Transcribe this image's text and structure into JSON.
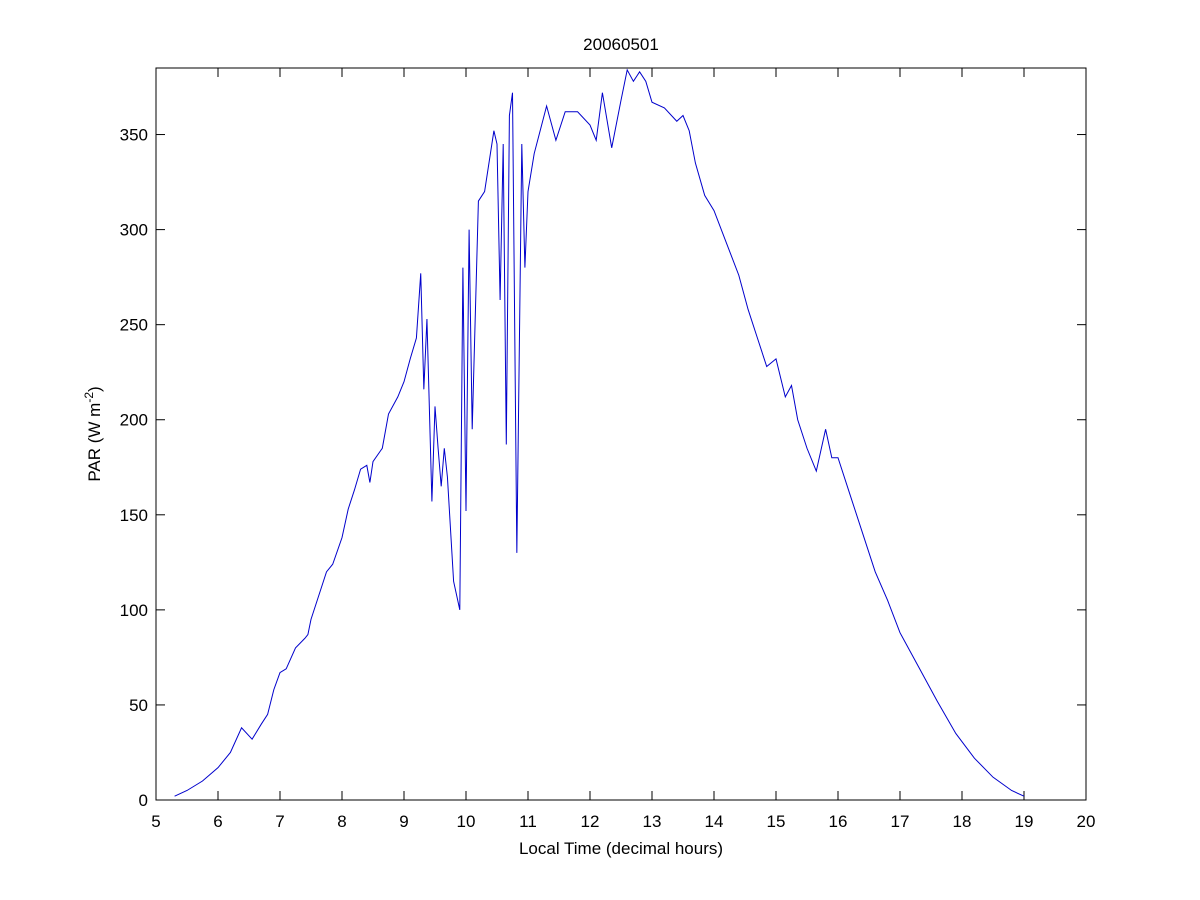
{
  "chart_data": {
    "type": "line",
    "title": "20060501",
    "xlabel": "Local Time (decimal hours)",
    "ylabel": {
      "text": "PAR (W m",
      "superscript": "-2",
      "suffix": ")"
    },
    "x": [
      5.3,
      5.5,
      5.75,
      6.0,
      6.2,
      6.38,
      6.55,
      6.7,
      6.8,
      6.9,
      7.0,
      7.1,
      7.25,
      7.4,
      7.45,
      7.5,
      7.6,
      7.75,
      7.85,
      8.0,
      8.1,
      8.2,
      8.3,
      8.4,
      8.45,
      8.5,
      8.65,
      8.75,
      8.9,
      9.0,
      9.1,
      9.2,
      9.27,
      9.32,
      9.37,
      9.45,
      9.5,
      9.55,
      9.6,
      9.65,
      9.7,
      9.8,
      9.9,
      9.95,
      10.0,
      10.05,
      10.1,
      10.2,
      10.3,
      10.45,
      10.5,
      10.55,
      10.6,
      10.65,
      10.7,
      10.75,
      10.82,
      10.9,
      10.95,
      11.0,
      11.1,
      11.3,
      11.45,
      11.6,
      11.8,
      12.0,
      12.1,
      12.2,
      12.35,
      12.5,
      12.6,
      12.7,
      12.8,
      12.9,
      13.0,
      13.2,
      13.4,
      13.5,
      13.6,
      13.7,
      13.85,
      14.0,
      14.2,
      14.4,
      14.55,
      14.7,
      14.85,
      15.0,
      15.15,
      15.25,
      15.35,
      15.5,
      15.65,
      15.8,
      15.9,
      16.0,
      16.2,
      16.4,
      16.6,
      16.8,
      17.0,
      17.3,
      17.6,
      17.9,
      18.2,
      18.5,
      18.8,
      19.0
    ],
    "values": [
      2,
      5,
      10,
      17,
      25,
      38,
      32,
      40,
      45,
      58,
      67,
      69,
      80,
      85,
      87,
      95,
      105,
      120,
      124,
      138,
      153,
      163,
      174,
      176,
      167,
      178,
      185,
      203,
      212,
      220,
      232,
      243,
      277,
      216,
      253,
      157,
      207,
      185,
      165,
      185,
      170,
      115,
      100,
      280,
      152,
      300,
      195,
      315,
      320,
      352,
      345,
      263,
      345,
      187,
      360,
      372,
      130,
      345,
      280,
      320,
      340,
      365,
      347,
      362,
      362,
      355,
      347,
      372,
      343,
      368,
      384,
      378,
      383,
      378,
      367,
      364,
      357,
      360,
      352,
      335,
      318,
      310,
      293,
      276,
      258,
      243,
      228,
      232,
      212,
      218,
      200,
      185,
      173,
      195,
      180,
      180,
      160,
      140,
      120,
      105,
      88,
      70,
      52,
      35,
      22,
      12,
      5,
      2
    ],
    "color": "#0000cc",
    "xlim": [
      5,
      20
    ],
    "xticks": [
      5,
      6,
      7,
      8,
      9,
      10,
      11,
      12,
      13,
      14,
      15,
      16,
      17,
      18,
      19,
      20
    ],
    "ylim": [
      0,
      385
    ],
    "yticks": [
      0,
      50,
      100,
      150,
      200,
      250,
      300,
      350
    ]
  }
}
